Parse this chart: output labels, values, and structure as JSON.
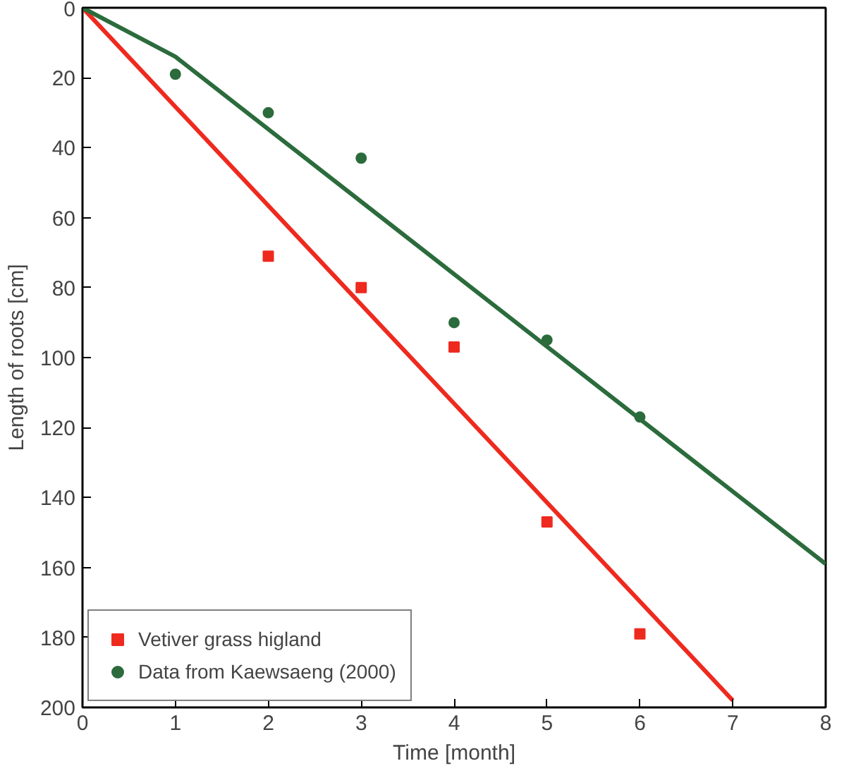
{
  "chart_data": {
    "type": "scatter",
    "xlabel": "Time [month]",
    "ylabel": "Length of roots [cm]",
    "xlim": [
      0,
      8
    ],
    "xticks": [
      0,
      1,
      2,
      3,
      4,
      5,
      6,
      7,
      8
    ],
    "ylim": [
      200,
      0
    ],
    "yticks": [
      0,
      20,
      40,
      60,
      80,
      100,
      120,
      140,
      160,
      180,
      200
    ],
    "grid": false,
    "legend": "bottom left",
    "series": [
      {
        "name": "Vetiver grass higland",
        "marker": "square",
        "color": "#ee2a1f",
        "x": [
          2,
          3,
          4,
          5,
          6
        ],
        "values": [
          71,
          80,
          97,
          147,
          179
        ]
      },
      {
        "name": "Data from Kaewsaeng (2000)",
        "marker": "circle",
        "color": "#2b6b3c",
        "x": [
          1,
          2,
          3,
          4,
          5,
          6
        ],
        "values": [
          19,
          30,
          43,
          90,
          95,
          117
        ]
      },
      {
        "type": "line",
        "color": "#ee2a1f",
        "x": [
          0,
          7
        ],
        "values": [
          0,
          198
        ]
      },
      {
        "type": "line",
        "color": "#2b6b3c",
        "x": [
          0,
          1,
          8
        ],
        "values": [
          0,
          14,
          159
        ]
      }
    ]
  }
}
